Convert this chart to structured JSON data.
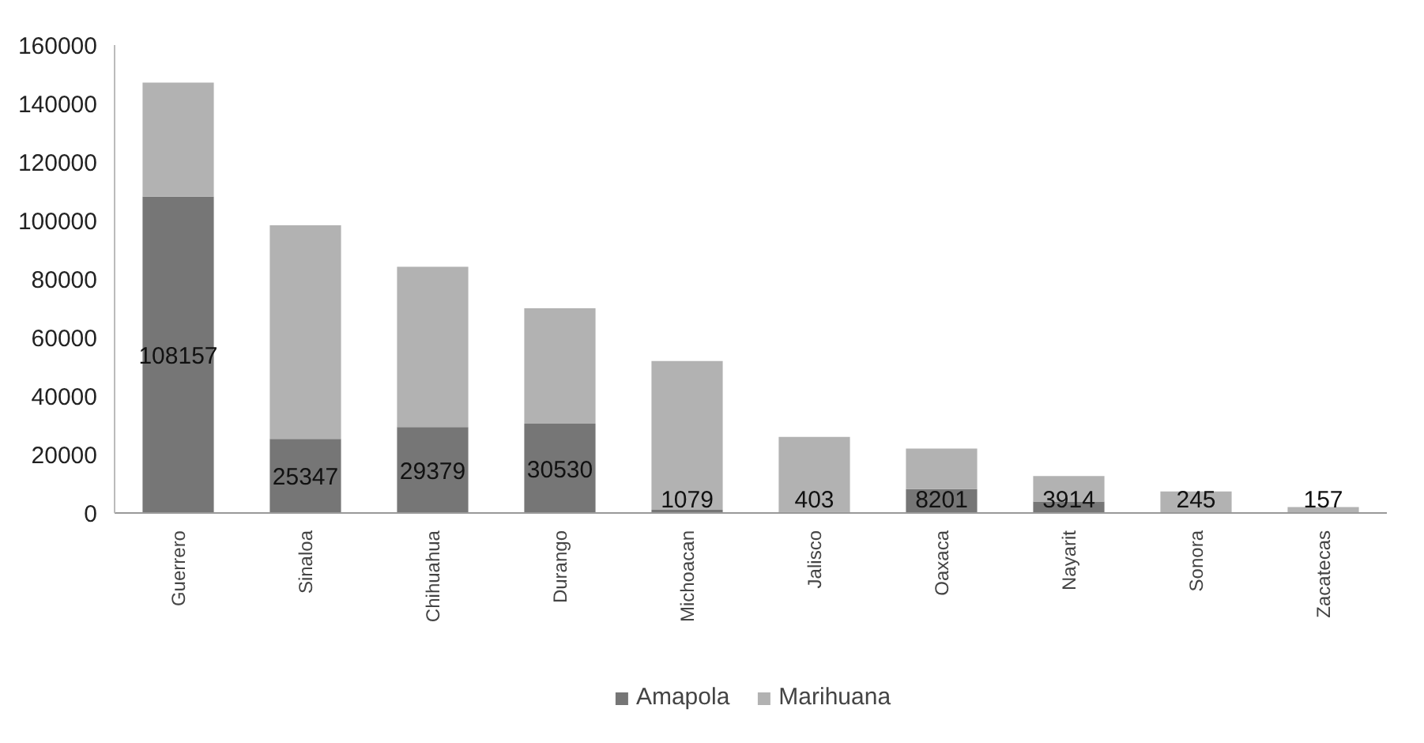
{
  "chart_data": {
    "type": "bar",
    "stacked": true,
    "categories": [
      "Guerrero",
      "Sinaloa",
      "Chihuahua",
      "Durango",
      "Michoacan",
      "Jalisco",
      "Oaxaca",
      "Nayarit",
      "Sonora",
      "Zacatecas"
    ],
    "series": [
      {
        "name": "Amapola",
        "color": "#767676",
        "values": [
          108157,
          25347,
          29379,
          30530,
          1079,
          403,
          8201,
          3914,
          245,
          157
        ],
        "value_labels": [
          "108157",
          "25347",
          "29379",
          "30530",
          "1079",
          "403",
          "8201",
          "3914",
          "245",
          "157"
        ]
      },
      {
        "name": "Marihuana",
        "color": "#b2b2b2",
        "values": [
          39000,
          73000,
          54800,
          39500,
          50900,
          25600,
          13800,
          8700,
          7100,
          1900
        ]
      }
    ],
    "ylim": [
      0,
      160000
    ],
    "yticks": [
      0,
      20000,
      40000,
      60000,
      80000,
      100000,
      120000,
      140000,
      160000
    ],
    "grid": false,
    "legend": "bottom"
  }
}
